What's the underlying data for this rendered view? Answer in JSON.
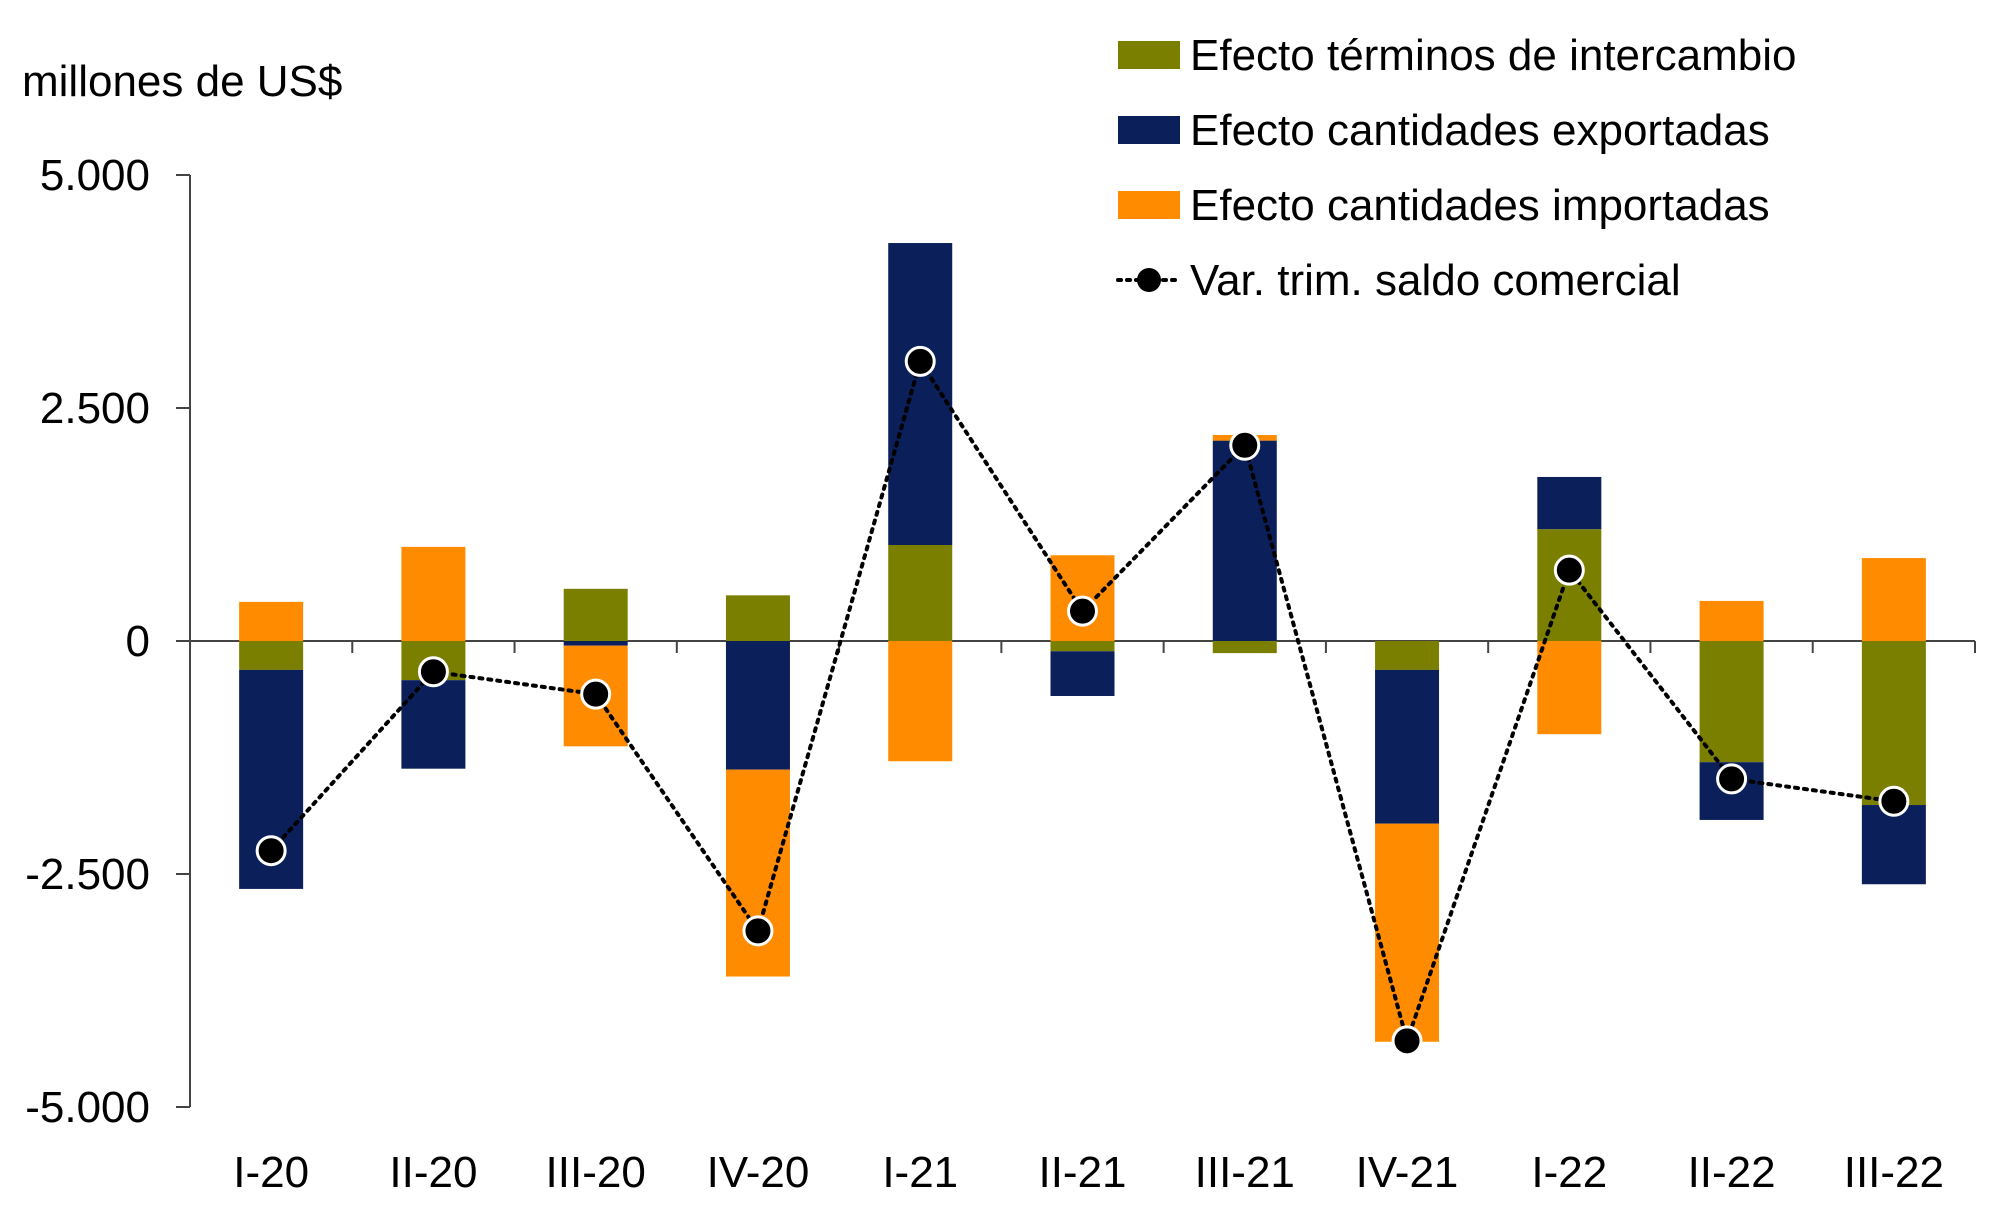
{
  "chart_data": {
    "type": "bar",
    "stacked": true,
    "ylabel": "millones de US$",
    "ylim": [
      -5000,
      5000
    ],
    "yticks": [
      5000,
      2500,
      0,
      -2500,
      -5000
    ],
    "ytick_labels": [
      "5.000",
      "2.500",
      "0",
      "-2.500",
      "-5.000"
    ],
    "categories": [
      "I-20",
      "II-20",
      "III-20",
      "IV-20",
      "I-21",
      "II-21",
      "III-21",
      "IV-21",
      "I-22",
      "II-22",
      "III-22"
    ],
    "series": [
      {
        "name": "Efecto términos de intercambio",
        "kind": "bar",
        "color": "#7a7f00",
        "values": [
          -310,
          -420,
          560,
          490,
          1030,
          -110,
          -130,
          -310,
          1200,
          -1300,
          -1760
        ]
      },
      {
        "name": "Efecto cantidades exportadas",
        "kind": "bar",
        "color": "#0b1f5a",
        "values": [
          -2350,
          -950,
          -50,
          -1380,
          3240,
          -480,
          2150,
          -1650,
          560,
          -620,
          -850
        ]
      },
      {
        "name": "Efecto cantidades importadas",
        "kind": "bar",
        "color": "#ff8c00",
        "values": [
          420,
          1010,
          -1080,
          -2220,
          -1290,
          920,
          60,
          -2340,
          -1000,
          430,
          890
        ]
      },
      {
        "name": "Var. trim. saldo comercial",
        "kind": "line",
        "color": "#000000",
        "values": [
          -2250,
          -330,
          -570,
          -3110,
          3000,
          320,
          2100,
          -4290,
          760,
          -1480,
          -1720
        ]
      }
    ],
    "legend_position": "top-right"
  }
}
